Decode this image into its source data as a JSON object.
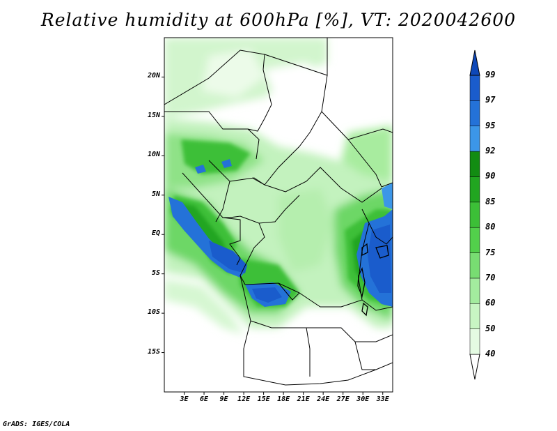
{
  "title": "Relative humidity at 600hPa [%], VT: 2020042600",
  "credit": "GrADS: IGES/COLA",
  "map": {
    "lon_range": [
      0,
      34.5
    ],
    "lat_range": [
      -20,
      25
    ],
    "lat_labels": [
      "20N",
      "15N",
      "10N",
      "5N",
      "EQ",
      "5S",
      "10S",
      "15S"
    ],
    "lat_values": [
      20,
      15,
      10,
      5,
      0,
      -5,
      -10,
      -15
    ],
    "lon_labels": [
      "3E",
      "6E",
      "9E",
      "12E",
      "15E",
      "18E",
      "21E",
      "24E",
      "27E",
      "30E",
      "33E"
    ],
    "lon_values": [
      3,
      6,
      9,
      12,
      15,
      18,
      21,
      24,
      27,
      30,
      33
    ]
  },
  "colorbar": {
    "levels": [
      "99",
      "97",
      "95",
      "92",
      "90",
      "85",
      "80",
      "75",
      "70",
      "60",
      "50",
      "40"
    ],
    "colors": [
      "#ffffff",
      "#e4fbe2",
      "#c8f5c3",
      "#a3eb9e",
      "#78dd72",
      "#52d04b",
      "#3cbf37",
      "#21a520",
      "#128c12",
      "#3c96e8",
      "#2472d8",
      "#1a5ccc",
      "#0e48b8"
    ]
  }
}
